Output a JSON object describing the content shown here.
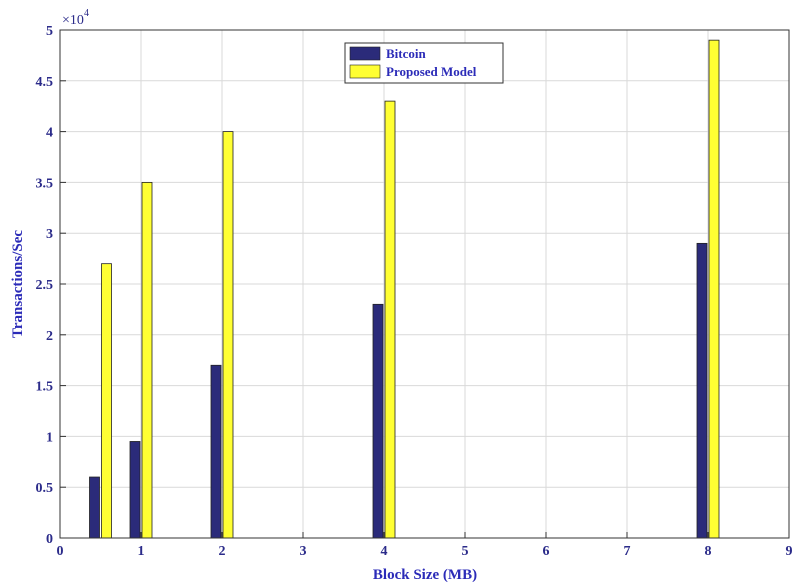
{
  "chart_data": {
    "type": "bar",
    "x": [
      0.5,
      1,
      2,
      4,
      8
    ],
    "series": [
      {
        "name": "Bitcoin",
        "values": [
          6000,
          9500,
          17000,
          23000,
          29000
        ],
        "color": "#2b2b7a"
      },
      {
        "name": "Proposed Model",
        "values": [
          27000,
          35000,
          40000,
          43000,
          49000
        ],
        "color": "#ffff33"
      }
    ],
    "xlabel": "Block Size (MB)",
    "ylabel": "Transactions/Sec",
    "xlim": [
      0,
      9
    ],
    "ylim": [
      0,
      50000
    ],
    "x_ticks": [
      "0",
      "1",
      "2",
      "3",
      "4",
      "5",
      "6",
      "7",
      "8",
      "9"
    ],
    "y_ticks": [
      "0",
      "0.5",
      "1",
      "1.5",
      "2",
      "2.5",
      "3",
      "3.5",
      "4",
      "4.5",
      "5"
    ],
    "y_exponent_base": "×10",
    "y_exponent_power": "4",
    "grid": true,
    "legend": "top-center"
  }
}
